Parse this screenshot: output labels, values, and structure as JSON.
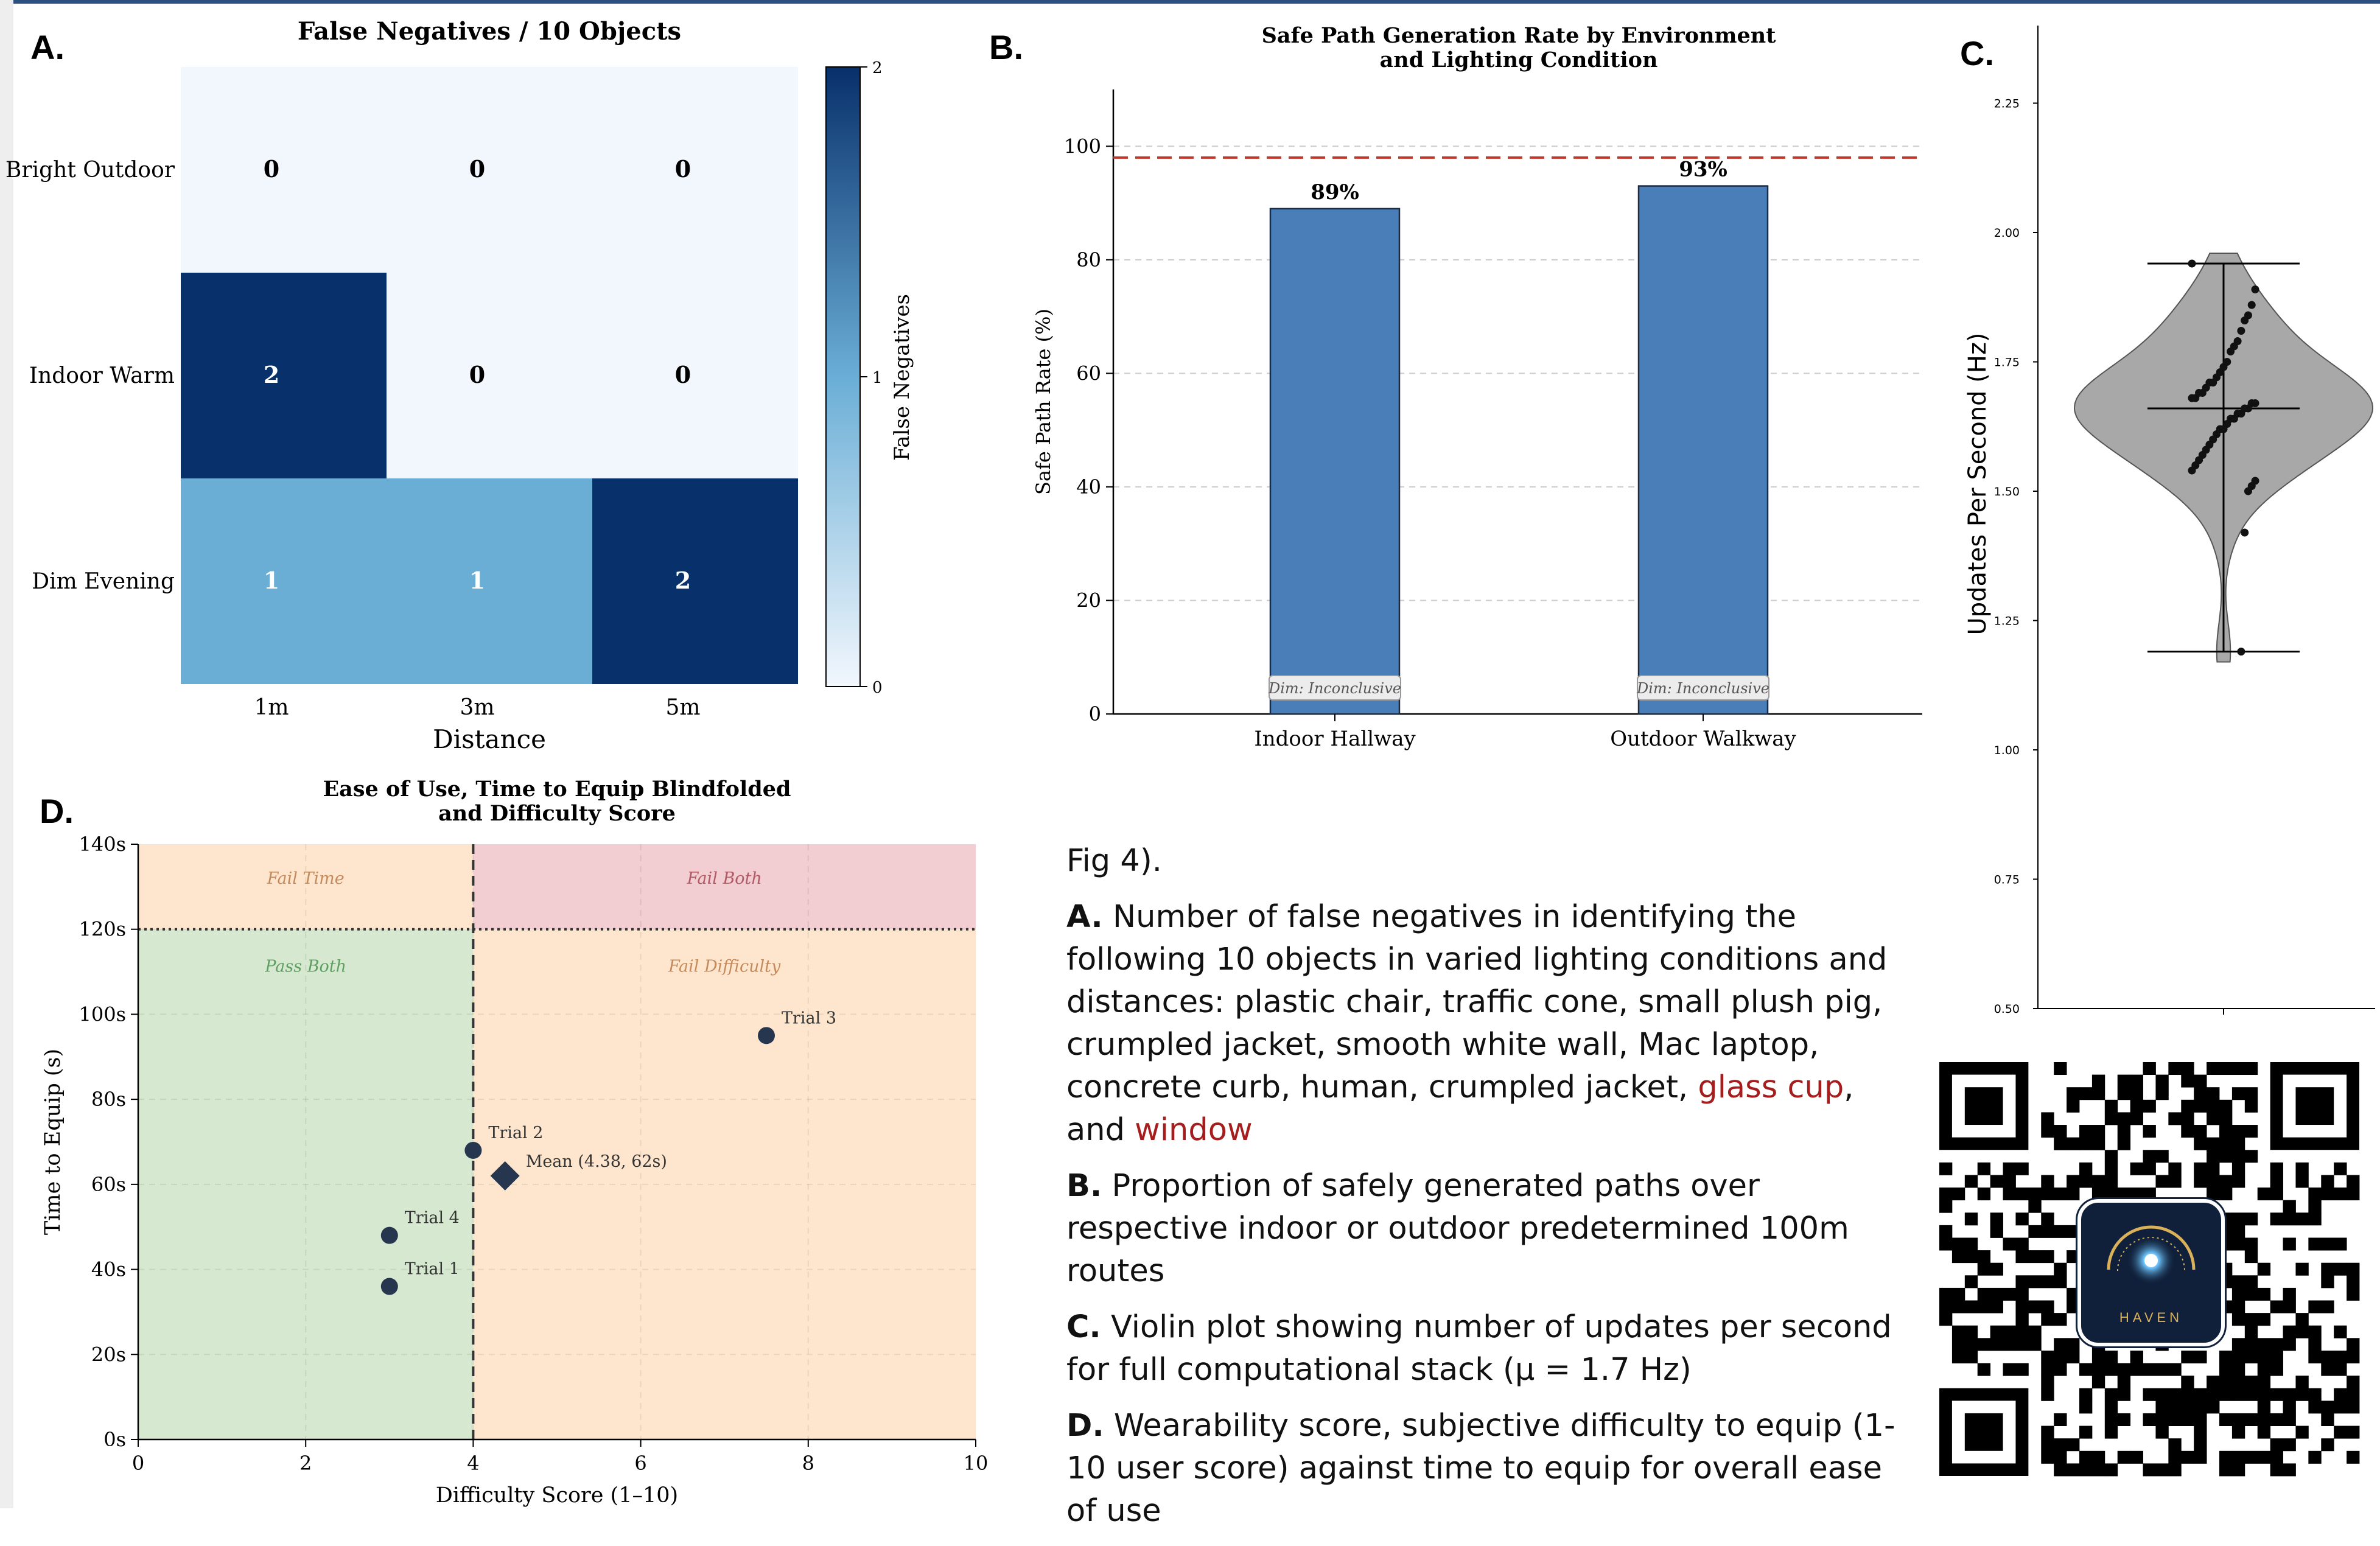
{
  "panels": {
    "a": "A.",
    "b": "B.",
    "c": "C.",
    "d": "D."
  },
  "chart_data": [
    {
      "id": "A",
      "type": "heatmap",
      "title": "False Negatives / 10 Objects",
      "xlabel": "Distance",
      "ylabel": "",
      "x_categories": [
        "1m",
        "3m",
        "5m"
      ],
      "y_categories": [
        "Bright Outdoor",
        "Indoor Warm",
        "Dim Evening"
      ],
      "values": [
        [
          0,
          0,
          0
        ],
        [
          2,
          0,
          0
        ],
        [
          1,
          1,
          2
        ]
      ],
      "colorbar": {
        "label": "False Negatives",
        "min": 0,
        "max": 2,
        "ticks": [
          "0",
          "1",
          "2"
        ]
      },
      "colors": {
        "low": "#f2f7fd",
        "mid": "#6aaed6",
        "high": "#08306b"
      }
    },
    {
      "id": "B",
      "type": "bar",
      "title_lines": [
        "Safe Path Generation Rate by Environment",
        "and Lighting Condition"
      ],
      "categories": [
        "Indoor Hallway",
        "Outdoor Walkway"
      ],
      "values": [
        89,
        93
      ],
      "data_labels": [
        "89%",
        "93%"
      ],
      "bar_notes": [
        "Dim: Inconclusive",
        "Dim: Inconclusive"
      ],
      "ylabel": "Safe Path Rate (%)",
      "ylim": [
        0,
        110
      ],
      "yticks": [
        0,
        20,
        40,
        60,
        80,
        100
      ],
      "reference_line": 98,
      "grid": true,
      "colors": {
        "bar": "#4a7eb8",
        "ref": "#c0392b"
      }
    },
    {
      "id": "C",
      "type": "violin",
      "ylabel": "Updates Per Second (Hz)",
      "ylim": [
        0.5,
        2.4
      ],
      "yticks": [
        "0.50",
        "0.75",
        "1.00",
        "1.25",
        "1.50",
        "1.75",
        "2.00",
        "2.25"
      ],
      "min": 1.19,
      "max": 1.94,
      "median": 1.66,
      "points": [
        1.94,
        1.89,
        1.86,
        1.84,
        1.83,
        1.81,
        1.79,
        1.78,
        1.77,
        1.75,
        1.74,
        1.73,
        1.72,
        1.71,
        1.71,
        1.7,
        1.69,
        1.69,
        1.68,
        1.68,
        1.67,
        1.67,
        1.66,
        1.66,
        1.65,
        1.65,
        1.64,
        1.64,
        1.63,
        1.62,
        1.62,
        1.61,
        1.6,
        1.59,
        1.58,
        1.57,
        1.56,
        1.55,
        1.54,
        1.52,
        1.51,
        1.5,
        1.42,
        1.19
      ],
      "colors": {
        "body": "#a8a8a8",
        "point": "#111111"
      }
    },
    {
      "id": "D",
      "type": "scatter",
      "title_lines": [
        "Ease of Use, Time to Equip Blindfolded",
        "and Difficulty Score"
      ],
      "xlabel": "Difficulty Score (1–10)",
      "ylabel": "Time to Equip (s)",
      "xlim": [
        0,
        10
      ],
      "ylim": [
        0,
        140
      ],
      "xticks": [
        "0",
        "2",
        "4",
        "6",
        "8",
        "10"
      ],
      "yticks": [
        "0s",
        "20s",
        "40s",
        "60s",
        "80s",
        "100s",
        "120s",
        "140s"
      ],
      "thresholds": {
        "x": 4,
        "y": 120
      },
      "regions": [
        "Fail Time",
        "Fail Both",
        "Pass Both",
        "Fail Difficulty"
      ],
      "points": [
        {
          "label": "Trial 1",
          "x": 3,
          "y": 36
        },
        {
          "label": "Trial 2",
          "x": 4,
          "y": 68
        },
        {
          "label": "Trial 3",
          "x": 7.5,
          "y": 95
        },
        {
          "label": "Trial 4",
          "x": 3,
          "y": 48
        }
      ],
      "mean": {
        "label": "Mean (4.38, 62s)",
        "x": 4.38,
        "y": 62
      },
      "colors": {
        "pass": "#d6e9d0",
        "fail": "#fde6cd",
        "fail_both": "#f2cdd1",
        "point": "#26364f"
      }
    }
  ],
  "caption": {
    "fig": "Fig 4).",
    "a_label": "A.",
    "a_text": " Number of false negatives in identifying the following 10 objects in varied lighting conditions and distances: plastic chair, traffic cone, small plush pig, crumpled jacket, smooth white wall, Mac laptop, concrete curb, human, crumpled jacket, ",
    "a_hl1": "glass cup",
    "a_mid": ", and ",
    "a_hl2": "window",
    "b_label": "B.",
    "b_text": " Proportion of safely generated paths over respective indoor or outdoor predetermined 100m routes",
    "c_label": "C.",
    "c_text": " Violin plot showing number of updates per second for full computational stack (μ = 1.7 Hz)",
    "d_label": "D.",
    "d_text": " Wearability score, subjective difficulty to equip (1-10 user score) against time to equip for overall ease of use"
  },
  "logo": {
    "text": "HAVEN"
  }
}
